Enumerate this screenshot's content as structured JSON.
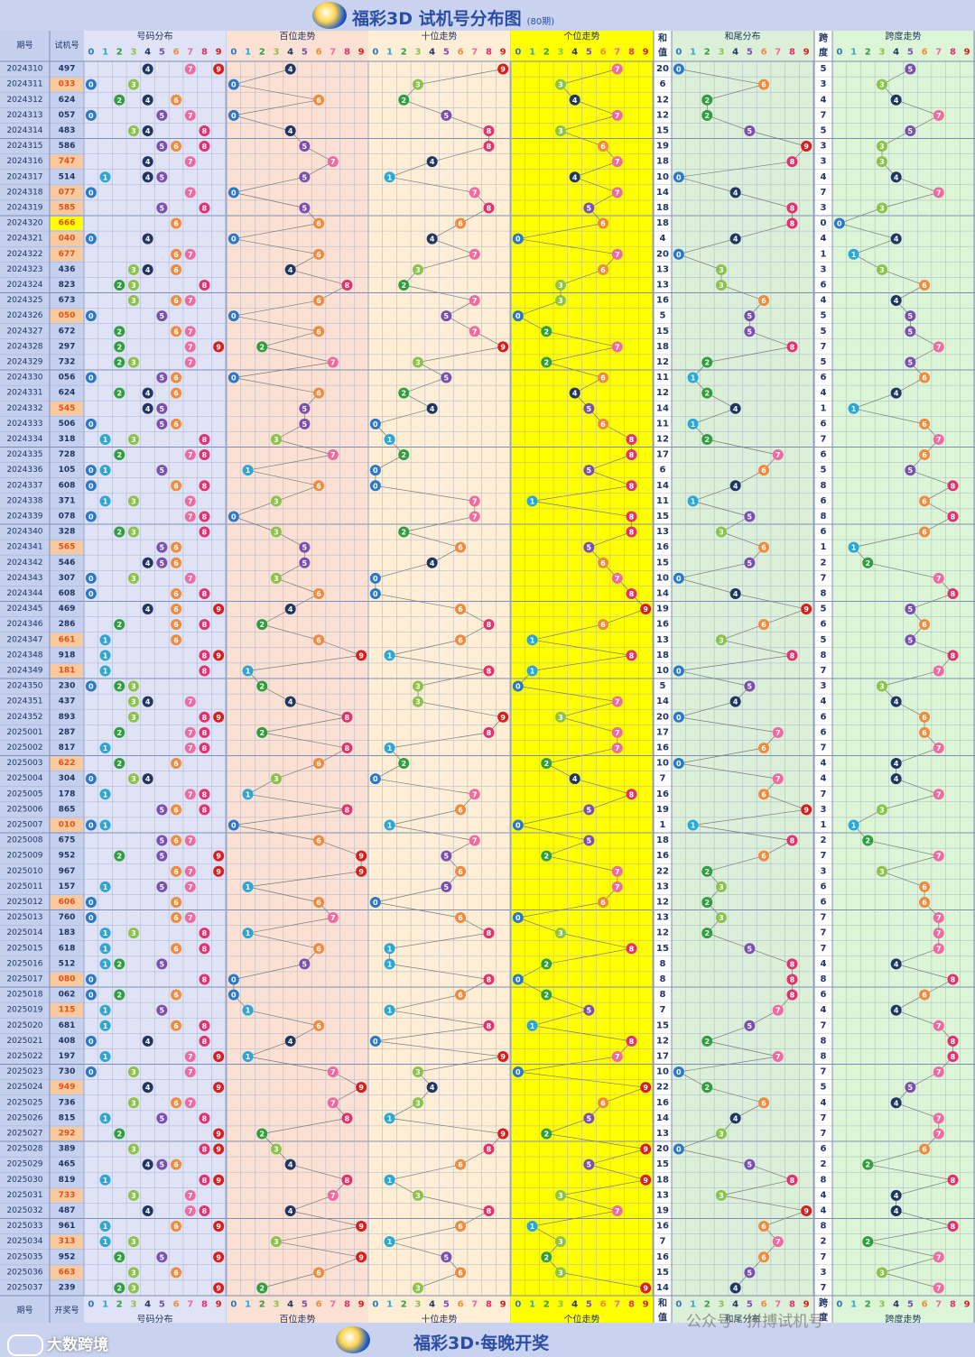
{
  "page": {
    "title": "福彩3D 试机号分布图",
    "subtitle": "(80期)",
    "footer_title": "福彩3D·每晚开奖",
    "brand": "大数跨境",
    "watermark": "公众号 · 拼搏试机号"
  },
  "colors": {
    "0": "#2a78c8",
    "1": "#2aa7d4",
    "2": "#2e9e3e",
    "3": "#8bc34a",
    "4": "#1f3563",
    "5": "#7b4fb0",
    "6": "#f08a3c",
    "7": "#ef6aa0",
    "8": "#e5306e",
    "9": "#d91c1c",
    "bg_dist": "#dfe3f5",
    "bg_bai": "#fbe1d3",
    "bg_shi": "#fdeed5",
    "bg_ge": "#ffff00",
    "bg_hewei": "#dcefd8",
    "bg_kua": "#dcf5d6",
    "bg_left": "#c5d0ee",
    "grid": "#9aa6c8",
    "pair_highlight": "#f9c99e",
    "triple_highlight": "#ffff00"
  },
  "headers": {
    "period": "期号",
    "shiji": "试机号",
    "dist": "号码分布",
    "bai": "百位走势",
    "shi": "十位走势",
    "ge": "个位走势",
    "he_top": "和",
    "he_bottom": "值",
    "hewei": "和尾分布",
    "kua_top": "跨",
    "kua_bottom": "度",
    "kuatrend": "跨度走势",
    "period_bottom": "期号",
    "kaijiang": "开奖号",
    "digits": [
      "0",
      "1",
      "2",
      "3",
      "4",
      "5",
      "6",
      "7",
      "8",
      "9"
    ]
  },
  "chart_data": {
    "type": "table",
    "title": "福彩3D 试机号分布图",
    "columns": [
      "期号",
      "试机号",
      "号码分布",
      "百位走势",
      "十位走势",
      "个位走势",
      "和值",
      "和尾分布",
      "跨度",
      "跨度走势"
    ],
    "rows": [
      [
        "2024310",
        "497",
        20,
        5
      ],
      [
        "2024311",
        "033",
        6,
        3
      ],
      [
        "2024312",
        "624",
        12,
        4
      ],
      [
        "2024313",
        "057",
        12,
        7
      ],
      [
        "2024314",
        "483",
        15,
        5
      ],
      [
        "2024315",
        "586",
        19,
        3
      ],
      [
        "2024316",
        "747",
        18,
        3
      ],
      [
        "2024317",
        "514",
        10,
        4
      ],
      [
        "2024318",
        "077",
        14,
        7
      ],
      [
        "2024319",
        "585",
        18,
        3
      ],
      [
        "2024320",
        "666",
        18,
        0
      ],
      [
        "2024321",
        "040",
        4,
        4
      ],
      [
        "2024322",
        "677",
        20,
        1
      ],
      [
        "2024323",
        "436",
        13,
        3
      ],
      [
        "2024324",
        "823",
        13,
        6
      ],
      [
        "2024325",
        "673",
        16,
        4
      ],
      [
        "2024326",
        "050",
        5,
        5
      ],
      [
        "2024327",
        "672",
        15,
        5
      ],
      [
        "2024328",
        "297",
        18,
        7
      ],
      [
        "2024329",
        "732",
        12,
        5
      ],
      [
        "2024330",
        "056",
        11,
        6
      ],
      [
        "2024331",
        "624",
        12,
        4
      ],
      [
        "2024332",
        "545",
        14,
        1
      ],
      [
        "2024333",
        "506",
        11,
        6
      ],
      [
        "2024334",
        "318",
        12,
        7
      ],
      [
        "2024335",
        "728",
        17,
        6
      ],
      [
        "2024336",
        "105",
        6,
        5
      ],
      [
        "2024337",
        "608",
        14,
        8
      ],
      [
        "2024338",
        "371",
        11,
        6
      ],
      [
        "2024339",
        "078",
        15,
        8
      ],
      [
        "2024340",
        "328",
        13,
        6
      ],
      [
        "2024341",
        "565",
        16,
        1
      ],
      [
        "2024342",
        "546",
        15,
        2
      ],
      [
        "2024343",
        "307",
        10,
        7
      ],
      [
        "2024344",
        "608",
        14,
        8
      ],
      [
        "2024345",
        "469",
        19,
        5
      ],
      [
        "2024346",
        "286",
        16,
        6
      ],
      [
        "2024347",
        "661",
        13,
        5
      ],
      [
        "2024348",
        "918",
        18,
        8
      ],
      [
        "2024349",
        "181",
        10,
        7
      ],
      [
        "2024350",
        "230",
        5,
        3
      ],
      [
        "2024351",
        "437",
        14,
        4
      ],
      [
        "2024352",
        "893",
        20,
        6
      ],
      [
        "2025001",
        "287",
        17,
        6
      ],
      [
        "2025002",
        "817",
        16,
        7
      ],
      [
        "2025003",
        "622",
        10,
        4
      ],
      [
        "2025004",
        "304",
        7,
        4
      ],
      [
        "2025005",
        "178",
        16,
        7
      ],
      [
        "2025006",
        "865",
        19,
        3
      ],
      [
        "2025007",
        "010",
        1,
        1
      ],
      [
        "2025008",
        "675",
        18,
        2
      ],
      [
        "2025009",
        "952",
        16,
        7
      ],
      [
        "2025010",
        "967",
        22,
        3
      ],
      [
        "2025011",
        "157",
        13,
        6
      ],
      [
        "2025012",
        "606",
        12,
        6
      ],
      [
        "2025013",
        "760",
        13,
        7
      ],
      [
        "2025014",
        "183",
        12,
        7
      ],
      [
        "2025015",
        "618",
        15,
        7
      ],
      [
        "2025016",
        "512",
        8,
        4
      ],
      [
        "2025017",
        "080",
        8,
        8
      ],
      [
        "2025018",
        "062",
        8,
        6
      ],
      [
        "2025019",
        "115",
        7,
        4
      ],
      [
        "2025020",
        "681",
        15,
        7
      ],
      [
        "2025021",
        "408",
        12,
        8
      ],
      [
        "2025022",
        "197",
        17,
        8
      ],
      [
        "2025023",
        "730",
        10,
        7
      ],
      [
        "2025024",
        "949",
        22,
        5
      ],
      [
        "2025025",
        "736",
        16,
        4
      ],
      [
        "2025026",
        "815",
        14,
        7
      ],
      [
        "2025027",
        "292",
        13,
        7
      ],
      [
        "2025028",
        "389",
        20,
        6
      ],
      [
        "2025029",
        "465",
        15,
        2
      ],
      [
        "2025030",
        "819",
        18,
        8
      ],
      [
        "2025031",
        "733",
        13,
        4
      ],
      [
        "2025032",
        "487",
        19,
        4
      ],
      [
        "2025033",
        "961",
        16,
        8
      ],
      [
        "2025034",
        "313",
        7,
        2
      ],
      [
        "2025035",
        "952",
        16,
        7
      ],
      [
        "2025036",
        "663",
        15,
        3
      ],
      [
        "2025037",
        "239",
        14,
        7
      ]
    ]
  }
}
